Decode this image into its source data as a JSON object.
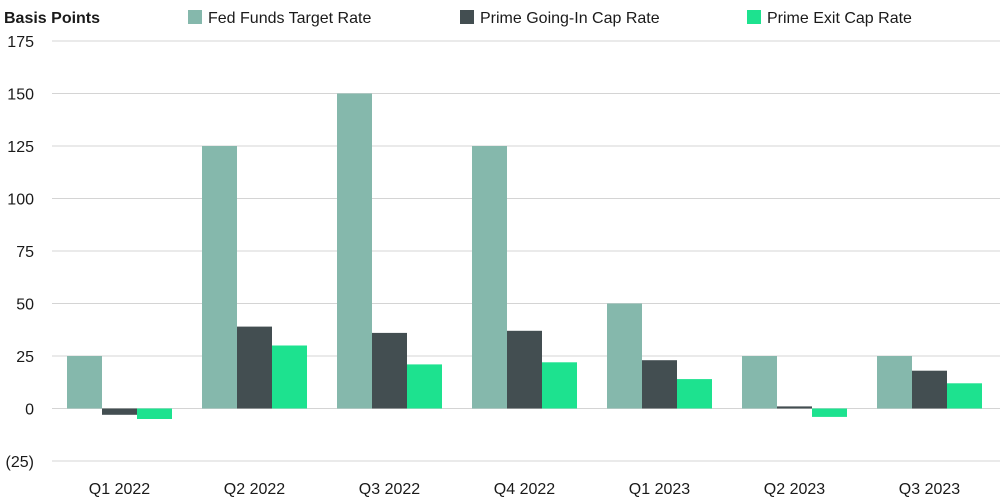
{
  "chart_data": {
    "type": "bar",
    "ylabel": "Basis Points",
    "xlabel": "",
    "title": "",
    "categories": [
      "Q1 2022",
      "Q2 2022",
      "Q3 2022",
      "Q4 2022",
      "Q1 2023",
      "Q2 2023",
      "Q3 2023"
    ],
    "series": [
      {
        "name": "Fed Funds Target Rate",
        "color": "#85b8ac",
        "values": [
          25,
          125,
          150,
          125,
          50,
          25,
          25
        ]
      },
      {
        "name": "Prime Going-In Cap Rate",
        "color": "#434e51",
        "values": [
          -3,
          39,
          36,
          37,
          23,
          1,
          18
        ]
      },
      {
        "name": "Prime Exit Cap Rate",
        "color": "#1de28f",
        "values": [
          -5,
          30,
          21,
          22,
          14,
          -4,
          12
        ]
      }
    ],
    "ylim": [
      -25,
      175
    ],
    "yticks": [
      175,
      150,
      125,
      100,
      75,
      50,
      25,
      0,
      -25
    ],
    "ytick_labels": [
      "175",
      "150",
      "125",
      "100",
      "75",
      "50",
      "25",
      "0",
      "(25)"
    ],
    "grid": true,
    "legend_position": "top"
  }
}
